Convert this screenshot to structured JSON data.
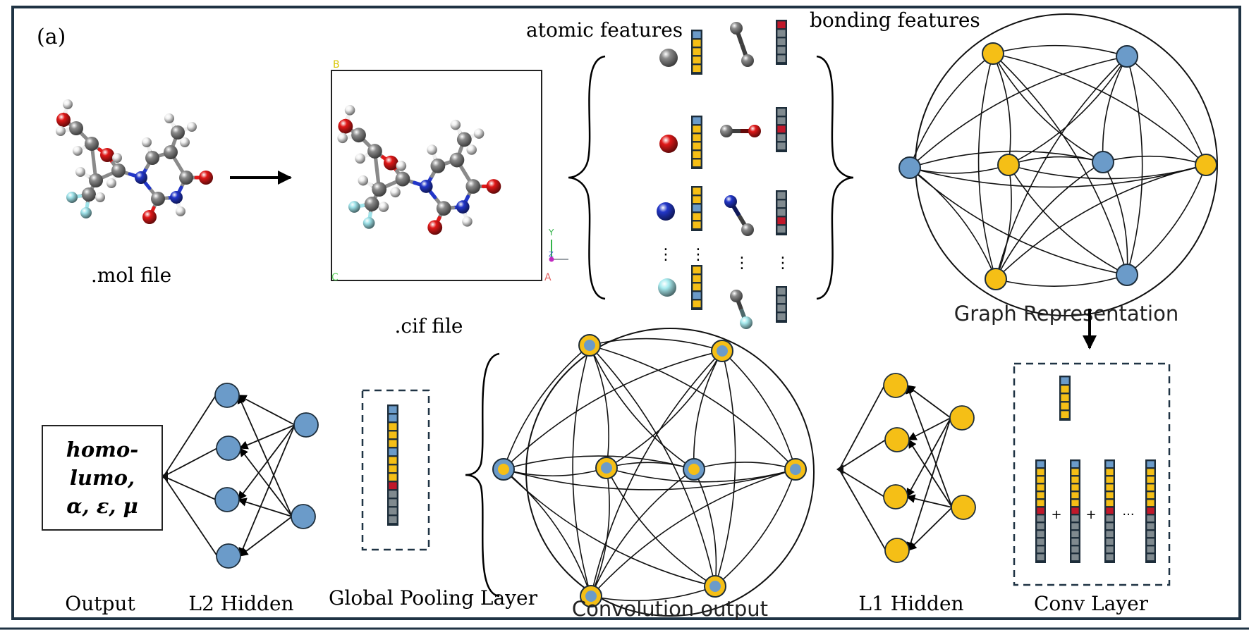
{
  "panel_label": "(a)",
  "mol_file_label": ".mol file",
  "cif_file_label": ".cif file",
  "cif_axis_corners": {
    "top_left": "B",
    "bottom_left": "C",
    "bottom_right": "A"
  },
  "cif_axes": {
    "y": "Y",
    "z": "Z"
  },
  "atomic_features_label": "atomic features",
  "bonding_features_label": "bonding features",
  "continuation_mark": "⋮",
  "graph_representation_label": "Graph Representation",
  "conv_layer_label": "Conv Layer",
  "conv_operators": [
    "+",
    "+",
    "···"
  ],
  "l1_hidden_label": "L1 Hidden",
  "convolution_output_label": "Convolution output",
  "global_pooling_label": "Global Pooling Layer",
  "l2_hidden_label": "L2 Hidden",
  "output_label": "Output",
  "output_targets": {
    "line1": "homo-",
    "line2": "lumo,",
    "line3": "α, ε, μ"
  },
  "colors": {
    "blue": "#6b9bc9",
    "orange": "#f5bf16",
    "red": "#c0182a",
    "gray": "#808a8f",
    "dark_edge": "#1d2d3a",
    "frame": "#1f3344"
  }
}
